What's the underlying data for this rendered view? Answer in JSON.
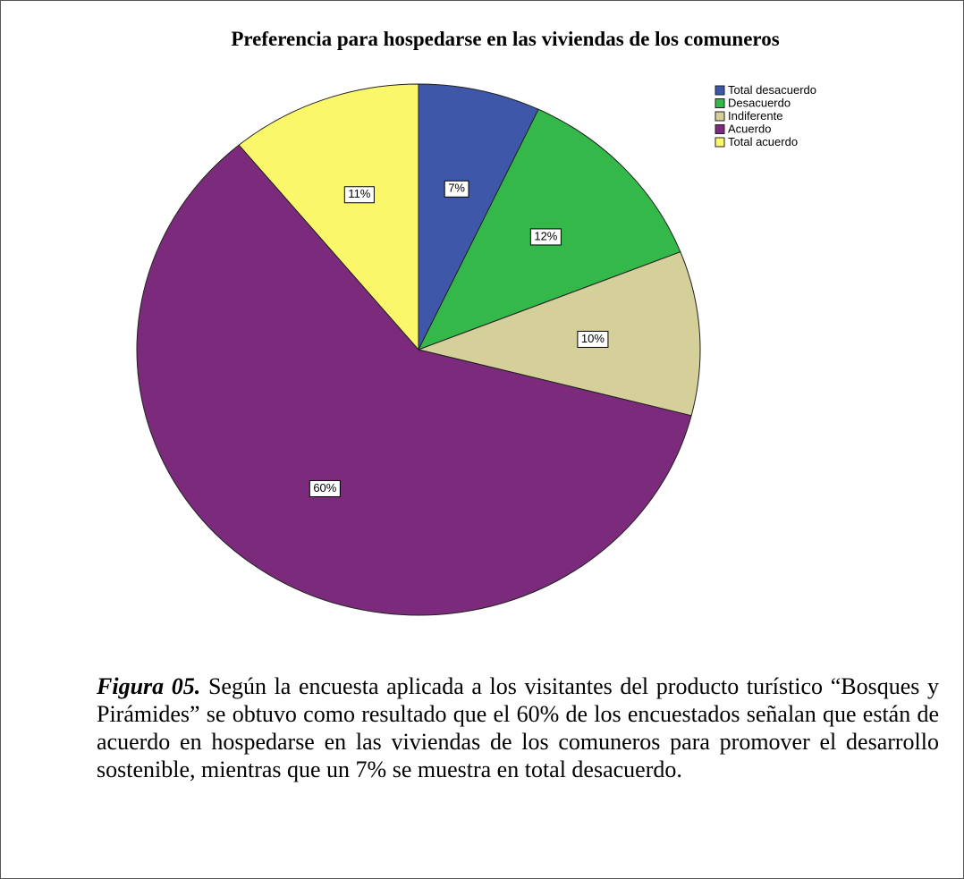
{
  "chart_data": {
    "type": "pie",
    "title": "Preferencia para hospedarse en las viviendas de los comuneros",
    "categories": [
      "Total desacuerdo",
      "Desacuerdo",
      "Indiferente",
      "Acuerdo",
      "Total acuerdo"
    ],
    "values": [
      7,
      12,
      10,
      60,
      11
    ],
    "value_labels": [
      "7%",
      "12%",
      "10%",
      "60%",
      "11%"
    ],
    "colors": [
      "#3f57a8",
      "#34b84a",
      "#d5cf9a",
      "#7b2a7c",
      "#fbf76b"
    ],
    "legend": "top-right"
  },
  "caption": {
    "label": "Figura 05.",
    "text": "Según la encuesta aplicada a los visitantes del producto turístico “Bosques y Pirámides” se obtuvo como resultado que el 60% de los encuestados señalan que están de acuerdo en hospedarse en las viviendas de los comuneros para promover el desarrollo sostenible, mientras que un 7% se muestra en total desacuerdo."
  }
}
